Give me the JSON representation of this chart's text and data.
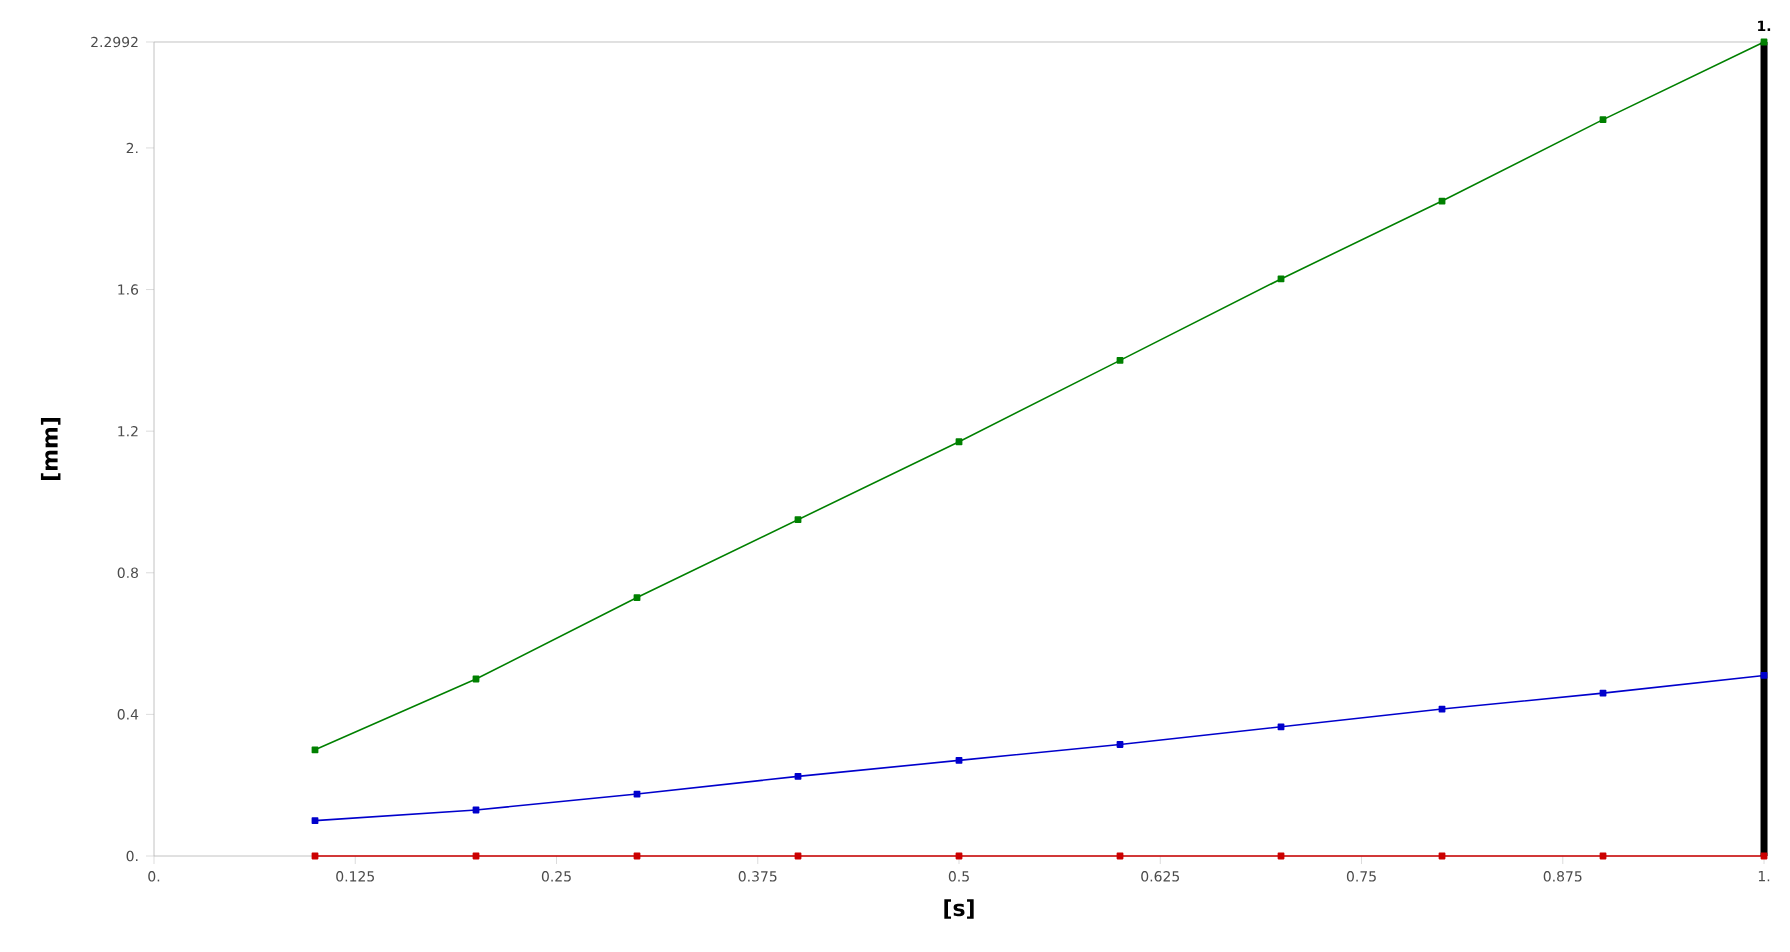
{
  "chart_data": {
    "type": "line",
    "xlabel": "[s]",
    "ylabel": "[mm]",
    "x": [
      0.1,
      0.2,
      0.3,
      0.4,
      0.5,
      0.6,
      0.7,
      0.8,
      0.9,
      1.0
    ],
    "series": [
      {
        "color": "#008000",
        "values": [
          0.3,
          0.5,
          0.73,
          0.95,
          1.17,
          1.4,
          1.63,
          1.85,
          2.08,
          2.2992
        ]
      },
      {
        "color": "#0000cc",
        "values": [
          0.1,
          0.13,
          0.175,
          0.225,
          0.27,
          0.315,
          0.365,
          0.415,
          0.46,
          0.51
        ]
      },
      {
        "color": "#cc0000",
        "values": [
          0,
          0,
          0,
          0,
          0,
          0,
          0,
          0,
          0,
          0
        ]
      }
    ],
    "xlim": [
      0,
      1
    ],
    "ylim": [
      0,
      2.2992
    ],
    "xticks": [
      {
        "value": 0,
        "label": "0."
      },
      0.125,
      0.25,
      0.375,
      0.5,
      0.625,
      0.75,
      0.875,
      {
        "value": 1,
        "label": "1."
      }
    ],
    "yticks": [
      {
        "value": 0,
        "label": "0."
      },
      0.4,
      0.8,
      1.2,
      1.6,
      {
        "value": 2,
        "label": "2."
      },
      2.2992
    ],
    "ref_lines": [
      {
        "axis": "x",
        "value": 1,
        "label": "1.",
        "color": "#000000"
      }
    ],
    "marker": "square",
    "line_style": "solid"
  }
}
